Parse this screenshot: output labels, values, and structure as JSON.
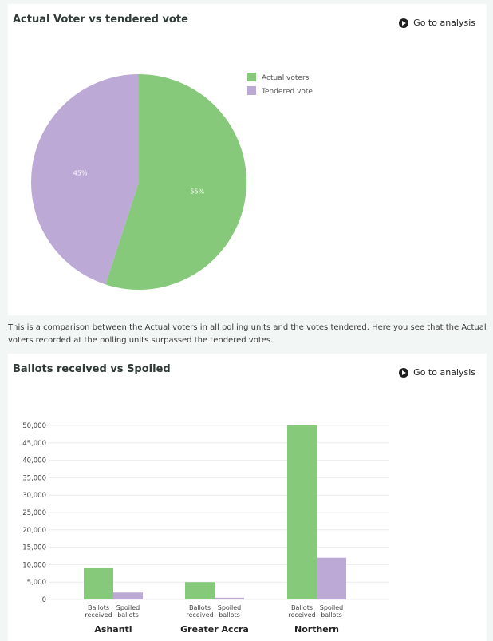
{
  "pie_card": {
    "title": "Actual Voter vs tendered vote",
    "goto_label": "Go to analysis",
    "description": "This is a comparison between the Actual voters in all polling units and the votes tendered. Here you see that the Actual voters recorded at the polling units surpassed the tendered votes."
  },
  "bar_card": {
    "title": "Ballots received vs Spoiled",
    "goto_label": "Go to analysis"
  },
  "colors": {
    "green": "#86c97b",
    "purple": "#bca9d5"
  },
  "chart_data": [
    {
      "type": "pie",
      "title": "Actual Voter vs tendered vote",
      "slices": [
        {
          "name": "Actual voters",
          "value": 55,
          "label": "55%",
          "color": "#86c97b"
        },
        {
          "name": "Tendered vote",
          "value": 45,
          "label": "45%",
          "color": "#bca9d5"
        }
      ],
      "legend": "top-right"
    },
    {
      "type": "bar",
      "title": "Ballots received vs Spoiled",
      "categories": [
        "Ashanti",
        "Greater Accra",
        "Northern"
      ],
      "series": [
        {
          "name": "Ballots received",
          "color": "#86c97b",
          "values": [
            9000,
            5000,
            50000
          ]
        },
        {
          "name": "Spoiled ballots",
          "color": "#bca9d5",
          "values": [
            2000,
            500,
            12000
          ]
        }
      ],
      "bar_label_lines": [
        [
          "Ballots",
          "received"
        ],
        [
          "Spoiled",
          "ballots"
        ]
      ],
      "ylim": [
        0,
        50000
      ],
      "yticks": [
        0,
        5000,
        10000,
        15000,
        20000,
        25000,
        30000,
        35000,
        40000,
        45000,
        50000
      ],
      "ytick_labels": [
        "0",
        "5,000",
        "10,000",
        "15,000",
        "20,000",
        "25,000",
        "30,000",
        "35,000",
        "40,000",
        "45,000",
        "50,000"
      ],
      "grid": true
    }
  ]
}
